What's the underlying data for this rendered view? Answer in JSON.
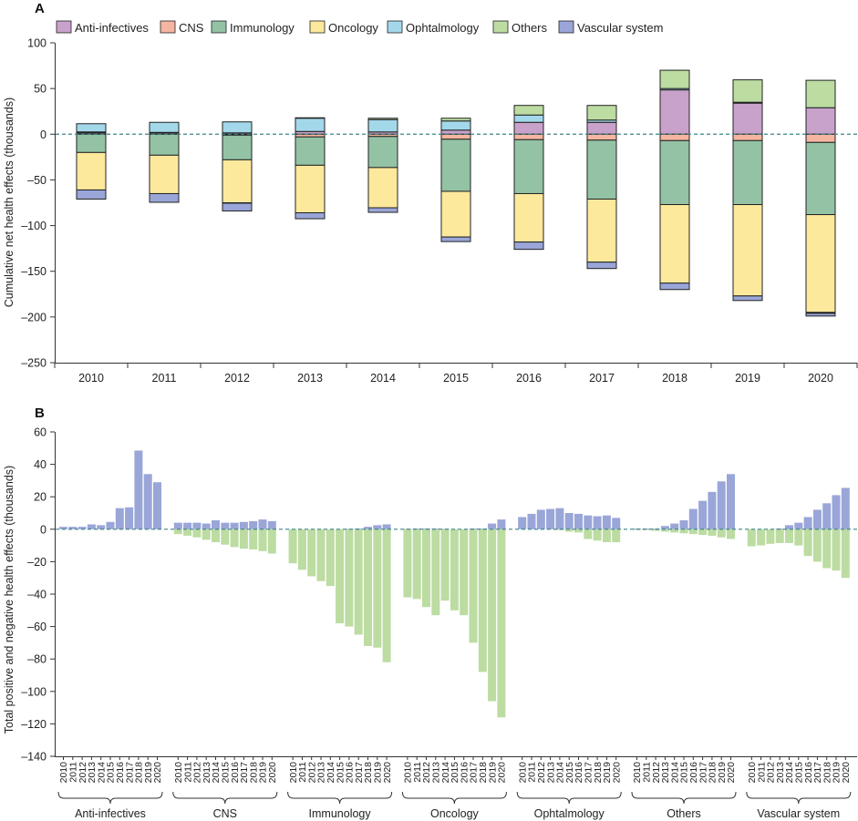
{
  "chart_data": [
    {
      "panel": "A",
      "type": "bar",
      "stacked": true,
      "ylabel": "Cumulative net health effects (thousands)",
      "ylim": [
        -250,
        100
      ],
      "yticks": [
        "100",
        "50",
        "0",
        "–50",
        "–100",
        "–150",
        "–200",
        "–250"
      ],
      "legend_position": "top-left",
      "categories": [
        "2010",
        "2011",
        "2012",
        "2013",
        "2014",
        "2015",
        "2016",
        "2017",
        "2018",
        "2019",
        "2020"
      ],
      "series": [
        {
          "name": "Anti-infectives",
          "color": "#c9a2cb",
          "values": [
            1.5,
            1.5,
            1.5,
            3,
            2.5,
            4.5,
            13,
            13,
            48.5,
            34,
            29
          ]
        },
        {
          "name": "CNS",
          "color": "#f5b5a0",
          "values": [
            1,
            0.5,
            -1,
            -3,
            -2.5,
            -5.5,
            -6,
            -6.5,
            -7,
            -7,
            -9
          ]
        },
        {
          "name": "Immunology",
          "color": "#93c3a4",
          "values": [
            -20,
            -23,
            -27,
            -31,
            -34,
            -57,
            -59,
            -64.5,
            -70,
            -70,
            -79
          ]
        },
        {
          "name": "Oncology",
          "color": "#fde99c",
          "values": [
            -41,
            -42,
            -47,
            -52,
            -44,
            -50,
            -53,
            -69,
            -86,
            -100,
            -107
          ]
        },
        {
          "name": "Ophtalmology",
          "color": "#a3d8ea",
          "values": [
            9,
            11,
            12,
            14.5,
            13.5,
            10,
            8,
            2.5,
            1.5,
            1,
            -1
          ]
        },
        {
          "name": "Others",
          "color": "#bcdca2",
          "values": [
            0,
            0,
            -0.5,
            0.5,
            1.5,
            3,
            10.5,
            16,
            20,
            24.5,
            30
          ]
        },
        {
          "name": "Vascular system",
          "color": "#9aa6d8",
          "values": [
            -10,
            -9.5,
            -8.5,
            -6.5,
            -5,
            -5,
            -8,
            -7,
            -7,
            -5,
            -3
          ]
        }
      ]
    },
    {
      "panel": "B",
      "type": "bar",
      "stacked": false,
      "ylabel": "Total positive and negative health effects (thousands)",
      "ylim": [
        -140,
        60
      ],
      "yticks": [
        "60",
        "40",
        "20",
        "0",
        "–20",
        "–40",
        "–60",
        "–80",
        "–100",
        "–120",
        "–140"
      ],
      "years": [
        "2010",
        "2011",
        "2012",
        "2013",
        "2014",
        "2015",
        "2016",
        "2017",
        "2018",
        "2019",
        "2020"
      ],
      "positive_color": "#9aa6d8",
      "negative_color": "#bcdca2",
      "groups": [
        {
          "name": "Anti-infectives",
          "positive": [
            1.5,
            1.5,
            1.5,
            3,
            2.5,
            4.5,
            13,
            13.5,
            48.5,
            34,
            29
          ],
          "negative": [
            0,
            0,
            0,
            0,
            0,
            0,
            0,
            0,
            0,
            0,
            0
          ]
        },
        {
          "name": "CNS",
          "positive": [
            4,
            4,
            4,
            3.5,
            5.5,
            4,
            4,
            4.5,
            5,
            6,
            5
          ],
          "negative": [
            -3,
            -4,
            -5,
            -6.5,
            -8,
            -9.5,
            -11,
            -12,
            -12.5,
            -13.5,
            -15
          ]
        },
        {
          "name": "Immunology",
          "positive": [
            0,
            0,
            0,
            0,
            0,
            0,
            0.3,
            0.5,
            1.5,
            2.5,
            3
          ],
          "negative": [
            -21,
            -25,
            -29,
            -32,
            -35,
            -58,
            -60,
            -65,
            -72,
            -73,
            -82
          ]
        },
        {
          "name": "Oncology",
          "positive": [
            0.3,
            0.5,
            0.5,
            0.5,
            0.3,
            0,
            0,
            0.5,
            0.5,
            3.5,
            6
          ],
          "negative": [
            -42,
            -43,
            -48,
            -53,
            -44,
            -50,
            -53,
            -70,
            -88,
            -106,
            -116
          ]
        },
        {
          "name": "Ophtalmology",
          "positive": [
            7.5,
            9.5,
            12,
            12.5,
            13,
            10,
            9.5,
            8.5,
            8,
            8.5,
            7
          ],
          "negative": [
            0,
            0,
            0,
            0,
            -0.5,
            -1.5,
            -2,
            -6,
            -7,
            -8,
            -8
          ]
        },
        {
          "name": "Others",
          "positive": [
            0.5,
            0.5,
            0.5,
            2,
            3.5,
            5.5,
            12.5,
            17.5,
            23,
            29.5,
            34
          ],
          "negative": [
            -0.5,
            -0.5,
            -1,
            -1.5,
            -2,
            -2.5,
            -3,
            -3.5,
            -4,
            -5,
            -6
          ]
        },
        {
          "name": "Vascular system",
          "positive": [
            0,
            0,
            0,
            0.5,
            2.5,
            4,
            7.5,
            12,
            16,
            21,
            25.5
          ],
          "negative": [
            -10.5,
            -10,
            -9,
            -8.5,
            -8.5,
            -10,
            -16.5,
            -20,
            -24,
            -25.5,
            -30
          ]
        }
      ]
    }
  ]
}
